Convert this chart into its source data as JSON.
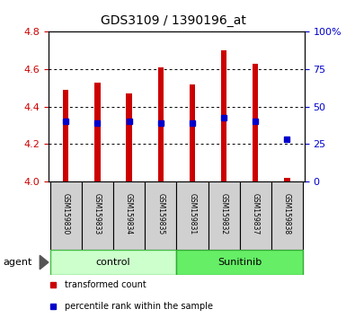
{
  "title": "GDS3109 / 1390196_at",
  "samples": [
    "GSM159830",
    "GSM159833",
    "GSM159834",
    "GSM159835",
    "GSM159831",
    "GSM159832",
    "GSM159837",
    "GSM159838"
  ],
  "bar_tops": [
    4.49,
    4.53,
    4.47,
    4.61,
    4.52,
    4.7,
    4.63,
    4.02
  ],
  "bar_base": 4.0,
  "blue_values": [
    4.32,
    4.31,
    4.32,
    4.31,
    4.31,
    4.34,
    4.32,
    4.225
  ],
  "ylim_left": [
    4.0,
    4.8
  ],
  "ylim_right": [
    0,
    100
  ],
  "yticks_left": [
    4.0,
    4.2,
    4.4,
    4.6,
    4.8
  ],
  "yticks_right": [
    0,
    25,
    50,
    75,
    100
  ],
  "yticks_right_labels": [
    "0",
    "25",
    "50",
    "75",
    "100%"
  ],
  "left_color": "#cc0000",
  "right_color": "#0000cc",
  "bar_color": "#cc0000",
  "blue_color": "#0000cc",
  "control_label": "control",
  "sunitinib_label": "Sunitinib",
  "agent_label": "agent",
  "control_color": "#ccffcc",
  "sunitinib_color": "#66ee66",
  "legend_red": "transformed count",
  "legend_blue": "percentile rank within the sample",
  "bg_color": "#ffffff",
  "sample_bg_color": "#d0d0d0",
  "bar_width": 0.18
}
